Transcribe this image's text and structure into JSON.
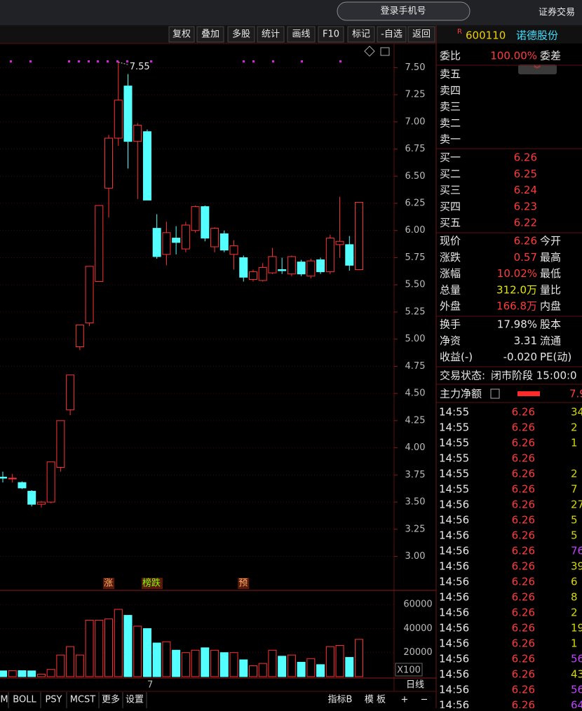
{
  "top_bar": {
    "login": "登录手机号",
    "trade": "证券交易"
  },
  "toolbar": [
    "复权",
    "叠加",
    "多股",
    "统计",
    "画线",
    "F10",
    "标记",
    "-自选",
    "返回"
  ],
  "stock": {
    "flag": "R",
    "code": "600110",
    "name": "诺德股份"
  },
  "order_book": {
    "ratio_label": "委比",
    "ratio": "100.00%",
    "diff_label": "委差",
    "sell": [
      "卖五",
      "卖四",
      "卖三",
      "卖二",
      "卖一"
    ],
    "buy": [
      [
        "买一",
        "6.26"
      ],
      [
        "买二",
        "6.25"
      ],
      [
        "买三",
        "6.24"
      ],
      [
        "买四",
        "6.23"
      ],
      [
        "买五",
        "6.22"
      ]
    ]
  },
  "quotes": [
    {
      "label": "现价",
      "value": "6.26",
      "label2": "今开",
      "color": "#ff3b3b"
    },
    {
      "label": "涨跌",
      "value": "0.57",
      "label2": "最高",
      "color": "#ff3b3b"
    },
    {
      "label": "涨幅",
      "value": "10.02%",
      "label2": "最低",
      "color": "#ff3b3b"
    },
    {
      "label": "总量",
      "value": "312.0万",
      "label2": "量比",
      "color": "#e6e600"
    },
    {
      "label": "外盘",
      "value": "166.8万",
      "label2": "内盘",
      "color": "#ff3b3b"
    },
    {
      "label": "换手",
      "value": "17.98%",
      "label2": "股本",
      "color": "#e8e8e8"
    },
    {
      "label": "净资",
      "value": "3.31",
      "label2": "流通",
      "color": "#e8e8e8"
    },
    {
      "label": "收益(-)",
      "value": "-0.020",
      "label2": "PE(动)",
      "color": "#e8e8e8"
    }
  ],
  "status": {
    "label": "交易状态:",
    "value": "闭市阶段 15:00:0"
  },
  "main_flow": {
    "label": "主力净额",
    "value": "7.9"
  },
  "ticks": [
    {
      "time": "14:55",
      "price": "6.26",
      "volume": "34",
      "color": "#d8d800"
    },
    {
      "time": "14:55",
      "price": "6.26",
      "volume": "2",
      "color": "#d8d800"
    },
    {
      "time": "14:55",
      "price": "6.26",
      "volume": "1",
      "color": "#d8d800"
    },
    {
      "time": "14:55",
      "price": "6.26"
    },
    {
      "time": "14:55",
      "price": "6.26",
      "volume": "2",
      "color": "#d8d800"
    },
    {
      "time": "14:55",
      "price": "6.26",
      "volume": "7",
      "color": "#d8d800"
    },
    {
      "time": "14:56",
      "price": "6.26",
      "volume": "27",
      "color": "#d8d800"
    },
    {
      "time": "14:56",
      "price": "6.26",
      "volume": "5",
      "color": "#d8d800"
    },
    {
      "time": "14:56",
      "price": "6.26",
      "volume": "5",
      "color": "#d8d800"
    },
    {
      "time": "14:56",
      "price": "6.26",
      "volume": "76",
      "color": "#c040ff"
    },
    {
      "time": "14:56",
      "price": "6.26",
      "volume": "39",
      "color": "#d8d800"
    },
    {
      "time": "14:56",
      "price": "6.26",
      "volume": "6",
      "color": "#d8d800"
    },
    {
      "time": "14:56",
      "price": "6.26",
      "volume": "8",
      "color": "#d8d800"
    },
    {
      "time": "14:56",
      "price": "6.26",
      "volume": "2",
      "color": "#d8d800"
    },
    {
      "time": "14:56",
      "price": "6.26",
      "volume": "19",
      "color": "#d8d800"
    },
    {
      "time": "14:56",
      "price": "6.26",
      "volume": "1",
      "color": "#d8d800"
    },
    {
      "time": "14:56",
      "price": "6.26",
      "volume": "56",
      "color": "#c040ff"
    },
    {
      "time": "14:56",
      "price": "6.26",
      "volume": "43",
      "color": "#d8d800"
    },
    {
      "time": "14:56",
      "price": "6.26",
      "volume": "56",
      "color": "#c040ff"
    },
    {
      "time": "14:56",
      "price": "6.26",
      "volume": "64",
      "color": "#c040ff"
    }
  ],
  "bottom_tabs": [
    "M",
    "BOLL",
    "PSY",
    "MCST",
    "更多",
    "设置"
  ],
  "bottom_right": [
    "指标B",
    "模 板",
    "+",
    "−"
  ],
  "period": "日线",
  "chart_data": {
    "type": "candlestick",
    "categories": [
      null,
      null,
      null,
      null,
      null,
      null,
      null,
      null,
      null,
      null,
      null,
      null,
      null,
      null,
      null,
      "7",
      null,
      null,
      null,
      null,
      null,
      null,
      null,
      null,
      null,
      null,
      null,
      null,
      null,
      null,
      null,
      null,
      null,
      null,
      null,
      null,
      null,
      null
    ],
    "open": [
      3.73,
      3.72,
      3.68,
      3.6,
      3.48,
      3.5,
      3.82,
      4.35,
      4.93,
      5.15,
      5.53,
      6.39,
      6.85,
      7.33,
      6.82,
      6.91,
      6.02,
      5.78,
      5.93,
      5.83,
      6.0,
      6.22,
      5.85,
      5.97,
      5.78,
      5.75,
      5.55,
      5.54,
      5.61,
      5.64,
      5.6,
      5.71,
      5.58,
      5.73,
      5.62,
      5.87,
      5.87,
      5.64
    ],
    "high": [
      3.78,
      3.76,
      3.69,
      3.61,
      3.51,
      3.87,
      4.25,
      4.67,
      5.13,
      5.67,
      6.23,
      6.88,
      7.55,
      7.44,
      6.99,
      6.93,
      6.15,
      6.08,
      6.04,
      6.08,
      6.23,
      6.23,
      6.03,
      6.0,
      5.91,
      5.77,
      5.64,
      5.7,
      5.84,
      5.75,
      5.77,
      5.73,
      5.74,
      5.75,
      5.96,
      6.31,
      5.95,
      6.26
    ],
    "low": [
      3.68,
      3.68,
      3.62,
      3.46,
      3.45,
      3.49,
      3.78,
      4.3,
      4.9,
      5.12,
      5.53,
      6.12,
      6.78,
      6.57,
      6.29,
      6.28,
      5.74,
      5.68,
      5.78,
      5.8,
      5.98,
      5.9,
      5.8,
      5.8,
      5.64,
      5.53,
      5.53,
      5.53,
      5.6,
      5.6,
      5.58,
      5.58,
      5.56,
      5.6,
      5.6,
      5.75,
      5.63,
      5.64
    ],
    "close": [
      3.72,
      3.72,
      3.63,
      3.48,
      3.5,
      3.87,
      4.25,
      4.67,
      5.13,
      5.67,
      6.23,
      6.85,
      7.2,
      6.82,
      6.97,
      6.28,
      5.76,
      5.98,
      5.89,
      6.05,
      6.22,
      5.93,
      6.02,
      5.82,
      5.86,
      5.57,
      5.62,
      5.66,
      5.76,
      5.63,
      5.76,
      5.6,
      5.72,
      5.62,
      5.93,
      5.9,
      5.68,
      6.26
    ],
    "up_color": "#ff3232",
    "down_color": "#54ffff",
    "ylim": [
      2.7,
      7.67
    ],
    "yticks": [
      {
        "value": 7.5,
        "label": "7.50"
      },
      {
        "value": 7.25,
        "label": "7.25"
      },
      {
        "value": 7,
        "label": "7.00"
      },
      {
        "value": 6.75,
        "label": "6.75"
      },
      {
        "value": 6.5,
        "label": "6.50"
      },
      {
        "value": 6.25,
        "label": "6.25"
      },
      {
        "value": 6,
        "label": "6.00"
      },
      {
        "value": 5.75,
        "label": "5.75"
      },
      {
        "value": 5.5,
        "label": "5.50"
      },
      {
        "value": 5.25,
        "label": "5.25"
      },
      {
        "value": 5,
        "label": "5.00"
      },
      {
        "value": 4.75,
        "label": "4.75"
      },
      {
        "value": 4.5,
        "label": "4.50"
      },
      {
        "value": 4.25,
        "label": "4.25"
      },
      {
        "value": 4,
        "label": "4.00"
      },
      {
        "value": 3.75,
        "label": "3.75"
      },
      {
        "value": 3.5,
        "label": "3.50"
      },
      {
        "value": 3.25,
        "label": "3.25"
      },
      {
        "value": 3,
        "label": "3.00"
      }
    ],
    "high_label": "7.55",
    "badges": [
      {
        "text": "涨",
        "index": 11
      },
      {
        "text": "榜跌",
        "index": 15
      },
      {
        "text": "预",
        "index": 25
      }
    ],
    "volume": [
      4800,
      5000,
      5000,
      4800,
      2000,
      6000,
      18000,
      25000,
      18000,
      47000,
      47000,
      48000,
      56000,
      51000,
      42000,
      40000,
      28000,
      29000,
      22000,
      20000,
      22000,
      24000,
      22000,
      20000,
      20000,
      14000,
      9000,
      11000,
      22000,
      17000,
      18000,
      12000,
      15000,
      10000,
      25000,
      26000,
      16000,
      31000
    ],
    "volume_ylim": [
      0,
      70000
    ],
    "volume_yticks": [
      60000,
      40000,
      20000
    ],
    "volume_unit": "X100"
  }
}
